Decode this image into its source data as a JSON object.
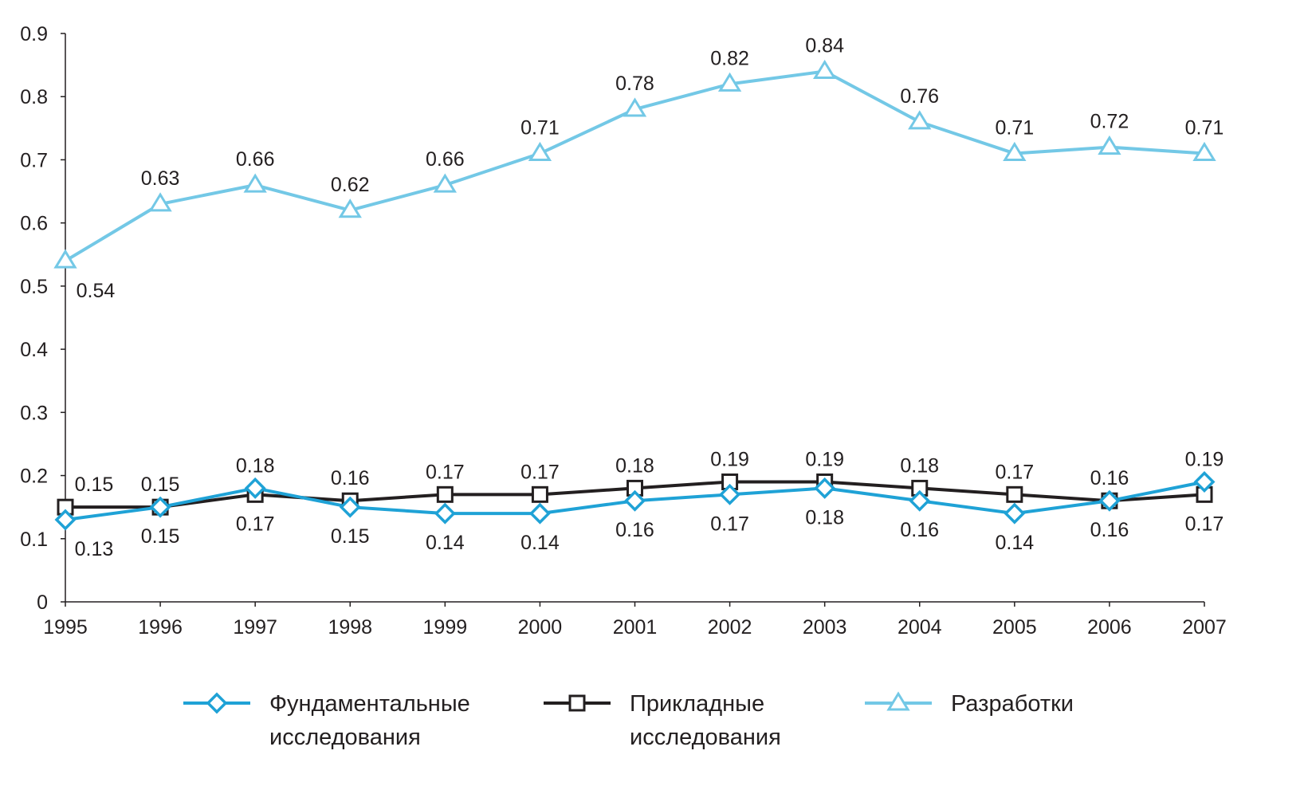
{
  "chart_data": {
    "type": "line",
    "title": "",
    "xlabel": "",
    "ylabel": "",
    "categories": [
      "1995",
      "1996",
      "1997",
      "1998",
      "1999",
      "2000",
      "2001",
      "2002",
      "2003",
      "2004",
      "2005",
      "2006",
      "2007"
    ],
    "ylim": [
      0,
      0.9
    ],
    "yticks": [
      "0",
      "0.1",
      "0.2",
      "0.3",
      "0.4",
      "0.5",
      "0.6",
      "0.7",
      "0.8",
      "0.9"
    ],
    "grid": false,
    "legend_position": "bottom",
    "series": [
      {
        "name": "Фундаментальные исследования",
        "legend_lines": [
          "Фундаментальные",
          "исследования"
        ],
        "marker": "diamond",
        "color": "#1fa2d6",
        "values": [
          0.13,
          0.15,
          0.18,
          0.15,
          0.14,
          0.14,
          0.16,
          0.17,
          0.18,
          0.16,
          0.14,
          0.16,
          0.19
        ],
        "labels": [
          "0.13",
          "0.15",
          "0.18",
          "0.15",
          "0.14",
          "0.14",
          "0.16",
          "0.17",
          "0.18",
          "0.16",
          "0.14",
          "0.16",
          "0.19"
        ],
        "label_positions": [
          "below",
          "below",
          "above",
          "below",
          "below",
          "below",
          "below",
          "below",
          "below",
          "below",
          "below",
          "above",
          "above"
        ]
      },
      {
        "name": "Прикладные исследования",
        "legend_lines": [
          "Прикладные",
          "исследования"
        ],
        "marker": "square",
        "color": "#231f20",
        "values": [
          0.15,
          0.15,
          0.17,
          0.16,
          0.17,
          0.17,
          0.18,
          0.19,
          0.19,
          0.18,
          0.17,
          0.16,
          0.17
        ],
        "labels": [
          "0.15",
          "0.15",
          "0.17",
          "0.16",
          "0.17",
          "0.17",
          "0.18",
          "0.19",
          "0.19",
          "0.18",
          "0.17",
          "0.16",
          "0.17"
        ],
        "label_positions": [
          "above",
          "above",
          "below",
          "above",
          "above",
          "above",
          "above",
          "above",
          "above",
          "above",
          "above",
          "below",
          "below"
        ]
      },
      {
        "name": "Разработки",
        "legend_lines": [
          "Разработки"
        ],
        "marker": "triangle",
        "color": "#73c8e6",
        "values": [
          0.54,
          0.63,
          0.66,
          0.62,
          0.66,
          0.71,
          0.78,
          0.82,
          0.84,
          0.76,
          0.71,
          0.72,
          0.71
        ],
        "labels": [
          "0.54",
          "0.63",
          "0.66",
          "0.62",
          "0.66",
          "0.71",
          "0.78",
          "0.82",
          "0.84",
          "0.76",
          "0.71",
          "0.72",
          "0.71"
        ],
        "label_positions": [
          "below",
          "above",
          "above",
          "above",
          "above",
          "above",
          "above",
          "above",
          "above",
          "above",
          "above",
          "above",
          "above"
        ]
      }
    ]
  }
}
